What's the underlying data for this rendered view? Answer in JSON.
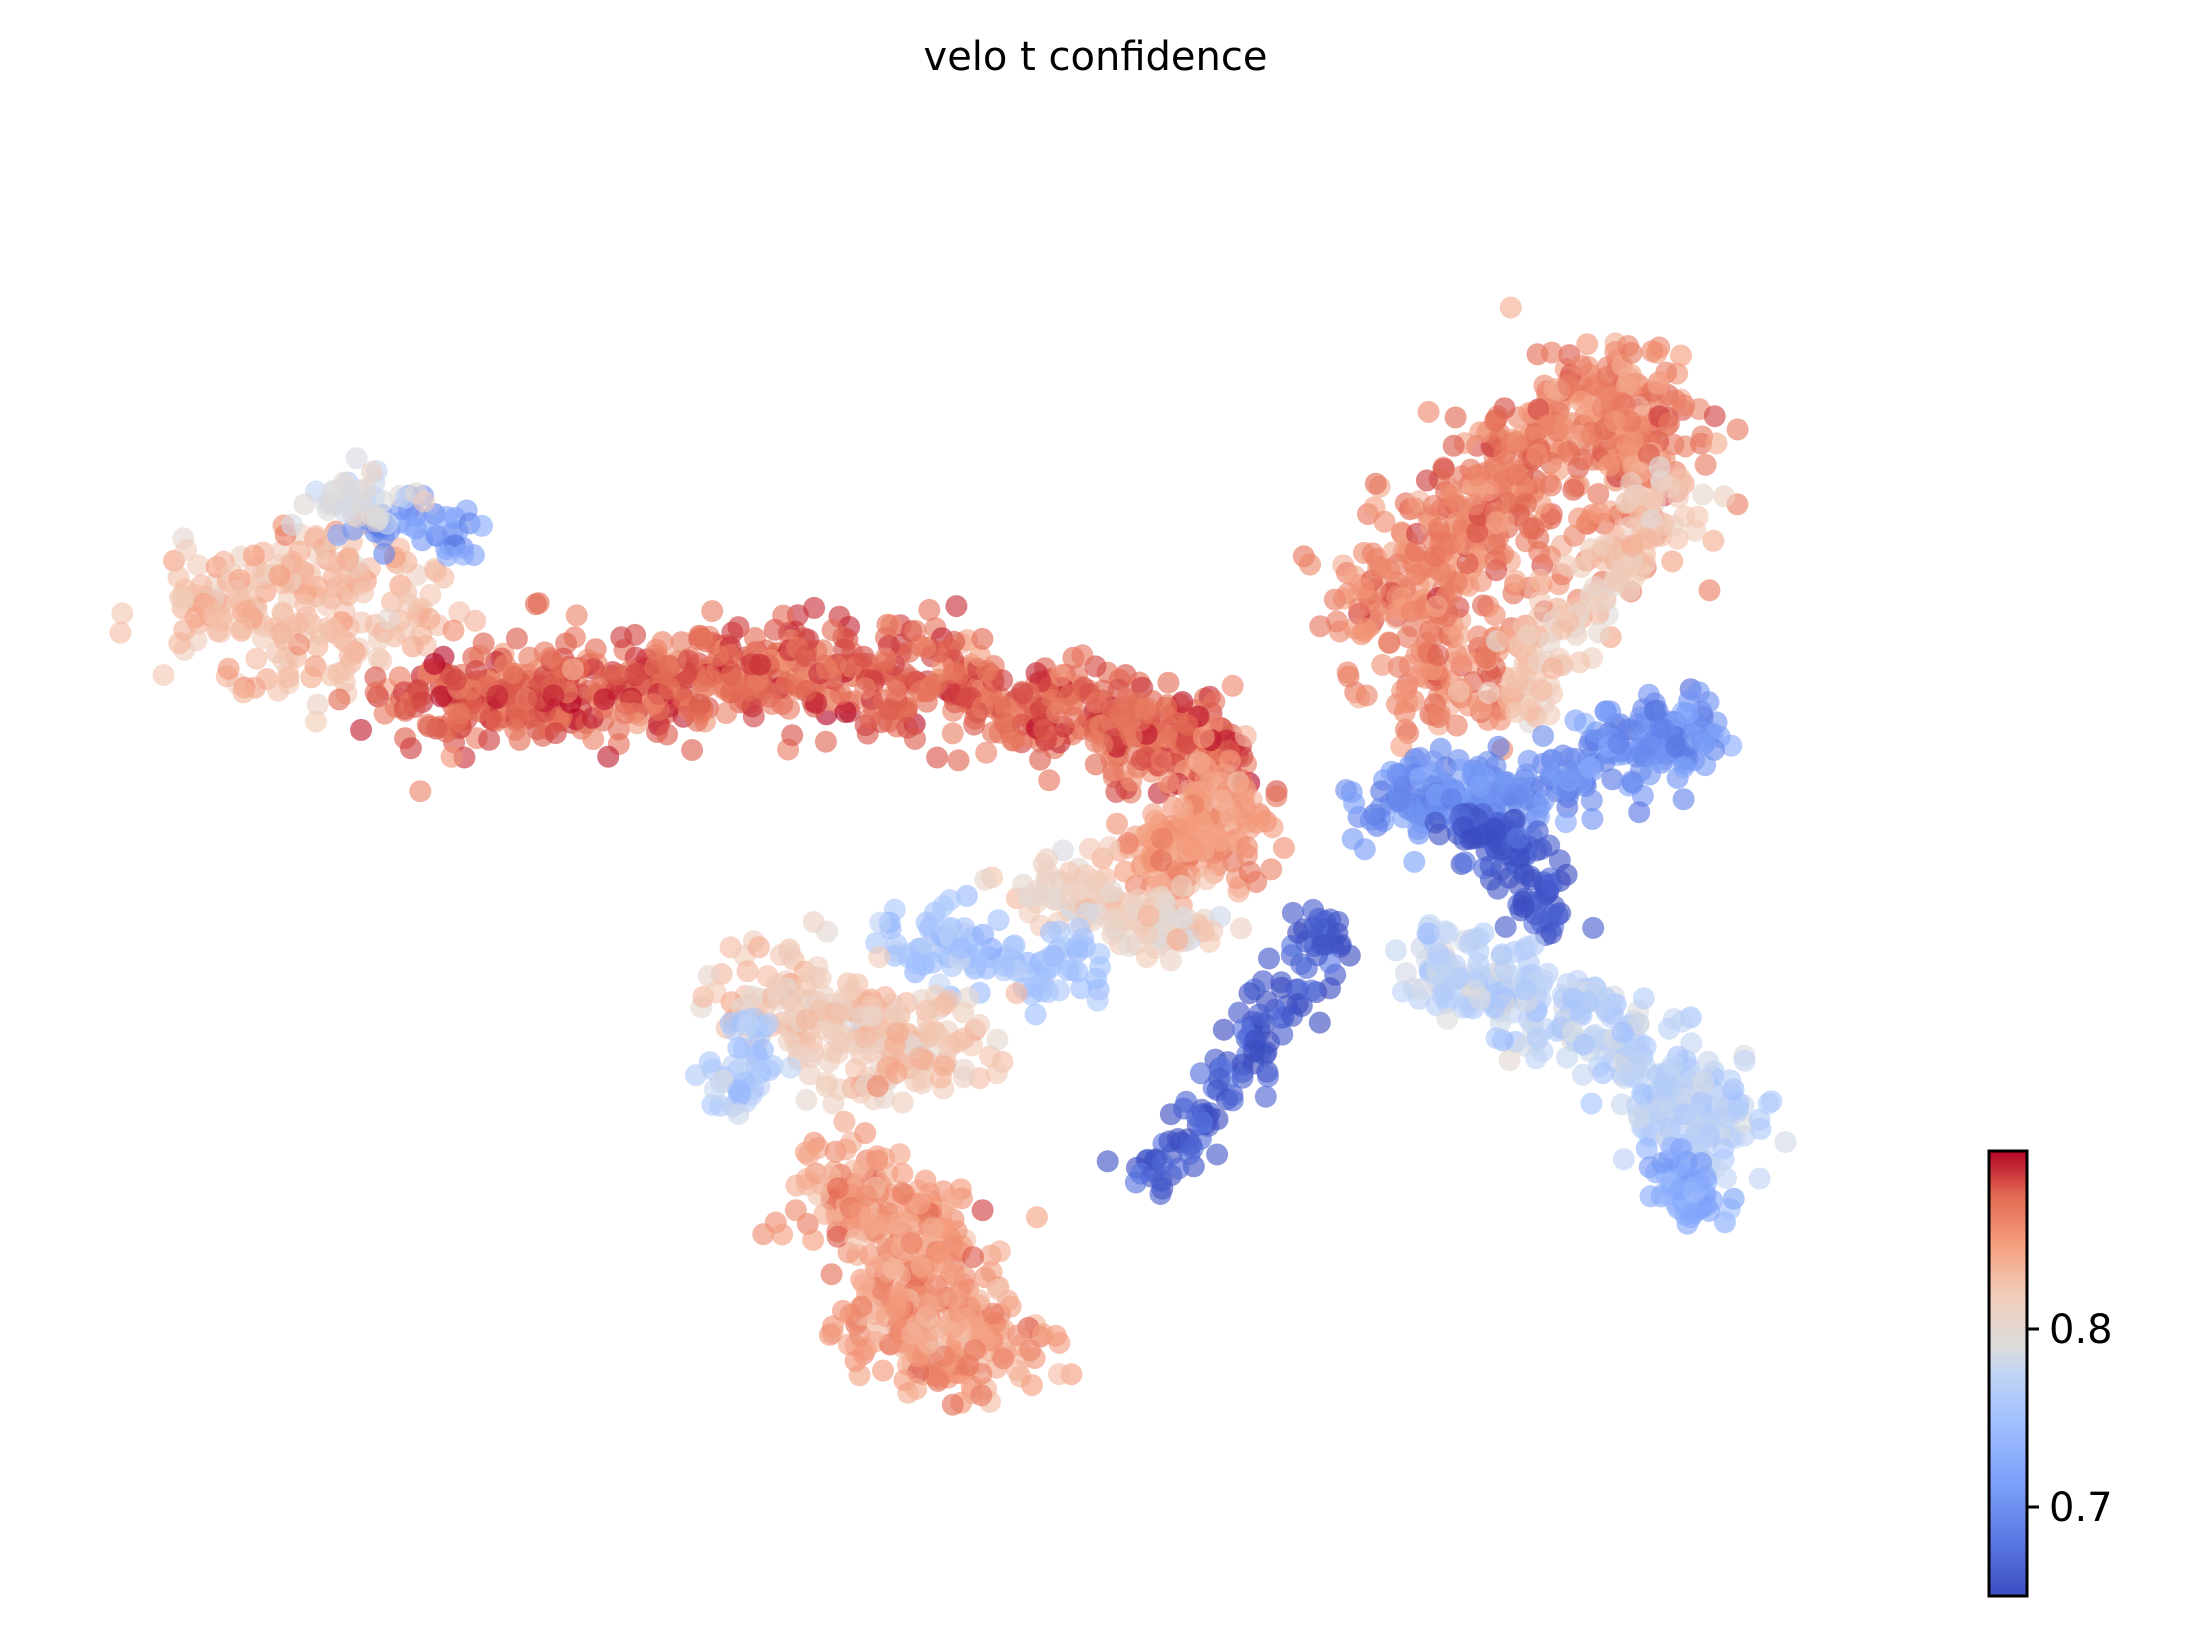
{
  "chart_data": {
    "type": "scatter",
    "title": "velo t confidence",
    "xlabel": "",
    "ylabel": "",
    "axes_visible": false,
    "grid": false,
    "colormap": {
      "name": "coolwarm",
      "low_color": "#3b4cc0",
      "mid_color": "#dddcdc",
      "high_color": "#b40426",
      "vmin": 0.65,
      "vmax": 0.9,
      "ticks": [
        0.7,
        0.8
      ],
      "tick_labels": [
        "0.7",
        "0.8"
      ],
      "placement": "bottom-right"
    },
    "x_range": [
      0,
      100
    ],
    "y_range": [
      0,
      100
    ],
    "clusters": [
      {
        "id": "arm-left-tip",
        "points": [
          [
            5,
            68
          ],
          [
            10,
            71
          ],
          [
            14,
            72
          ],
          [
            9,
            64
          ],
          [
            15,
            67
          ]
        ],
        "value": 0.83,
        "spread": 4.2,
        "count": 220
      },
      {
        "id": "arm-left-blue-tip",
        "points": [
          [
            14,
            74
          ],
          [
            17,
            75
          ],
          [
            19,
            73
          ]
        ],
        "value": 0.7,
        "spread": 1.6,
        "count": 40
      },
      {
        "id": "arm-left-white",
        "points": [
          [
            11,
            76
          ],
          [
            15,
            76
          ]
        ],
        "value": 0.79,
        "spread": 2.0,
        "count": 40
      },
      {
        "id": "arm-main-body",
        "points": [
          [
            18,
            61
          ],
          [
            24,
            62
          ],
          [
            30,
            63
          ],
          [
            36,
            64
          ],
          [
            42,
            63
          ],
          [
            48,
            62
          ],
          [
            54,
            60
          ],
          [
            59,
            58
          ]
        ],
        "value": 0.875,
        "spread": 3.4,
        "count": 900
      },
      {
        "id": "arm-main-end",
        "points": [
          [
            60,
            55
          ],
          [
            61,
            51
          ],
          [
            57,
            50
          ]
        ],
        "value": 0.85,
        "spread": 2.6,
        "count": 160
      },
      {
        "id": "arm-lower-tail",
        "points": [
          [
            51,
            48
          ],
          [
            55,
            46
          ],
          [
            58,
            45
          ]
        ],
        "value": 0.81,
        "spread": 2.5,
        "count": 120
      },
      {
        "id": "arm-lower-white",
        "points": [
          [
            44,
            44
          ],
          [
            48,
            43
          ],
          [
            52,
            42
          ]
        ],
        "value": 0.75,
        "spread": 2.4,
        "count": 110
      },
      {
        "id": "bottom-upper",
        "points": [
          [
            36,
            40
          ],
          [
            40,
            38
          ],
          [
            44,
            36
          ]
        ],
        "value": 0.82,
        "spread": 3.8,
        "count": 260
      },
      {
        "id": "bottom-lower",
        "points": [
          [
            40,
            26
          ],
          [
            45,
            22
          ],
          [
            42,
            16
          ],
          [
            47,
            14
          ]
        ],
        "value": 0.85,
        "spread": 3.5,
        "count": 420
      },
      {
        "id": "bottom-left-edge",
        "points": [
          [
            34,
            33
          ],
          [
            35,
            37
          ]
        ],
        "value": 0.76,
        "spread": 1.8,
        "count": 50
      },
      {
        "id": "middle-blue-bridge",
        "points": [
          [
            57,
            27
          ],
          [
            60,
            32
          ],
          [
            62,
            36
          ],
          [
            64,
            40
          ],
          [
            66,
            45
          ]
        ],
        "value": 0.66,
        "spread": 1.8,
        "count": 130
      },
      {
        "id": "right-upper-lobe",
        "points": [
          [
            70,
            69
          ],
          [
            74,
            74
          ],
          [
            78,
            80
          ],
          [
            82,
            85
          ],
          [
            84,
            78
          ],
          [
            72,
            62
          ]
        ],
        "value": 0.86,
        "spread": 3.6,
        "count": 650
      },
      {
        "id": "right-upper-edge",
        "points": [
          [
            77,
            62
          ],
          [
            81,
            70
          ],
          [
            85,
            76
          ]
        ],
        "value": 0.82,
        "spread": 2.4,
        "count": 140
      },
      {
        "id": "right-blue-band",
        "points": [
          [
            70,
            54
          ],
          [
            74,
            55
          ],
          [
            78,
            54
          ],
          [
            82,
            58
          ],
          [
            86,
            59
          ]
        ],
        "value": 0.7,
        "spread": 2.6,
        "count": 300
      },
      {
        "id": "right-deep-blue",
        "points": [
          [
            75,
            52
          ],
          [
            77,
            50
          ],
          [
            78,
            46
          ]
        ],
        "value": 0.66,
        "spread": 1.9,
        "count": 110
      },
      {
        "id": "right-lower-arm",
        "points": [
          [
            73,
            42
          ],
          [
            77,
            40
          ],
          [
            81,
            37
          ],
          [
            85,
            34
          ],
          [
            87,
            30
          ]
        ],
        "value": 0.77,
        "spread": 3.0,
        "count": 360
      },
      {
        "id": "right-lower-tip",
        "points": [
          [
            85,
            27
          ],
          [
            87,
            25
          ]
        ],
        "value": 0.72,
        "spread": 1.8,
        "count": 50
      }
    ]
  }
}
